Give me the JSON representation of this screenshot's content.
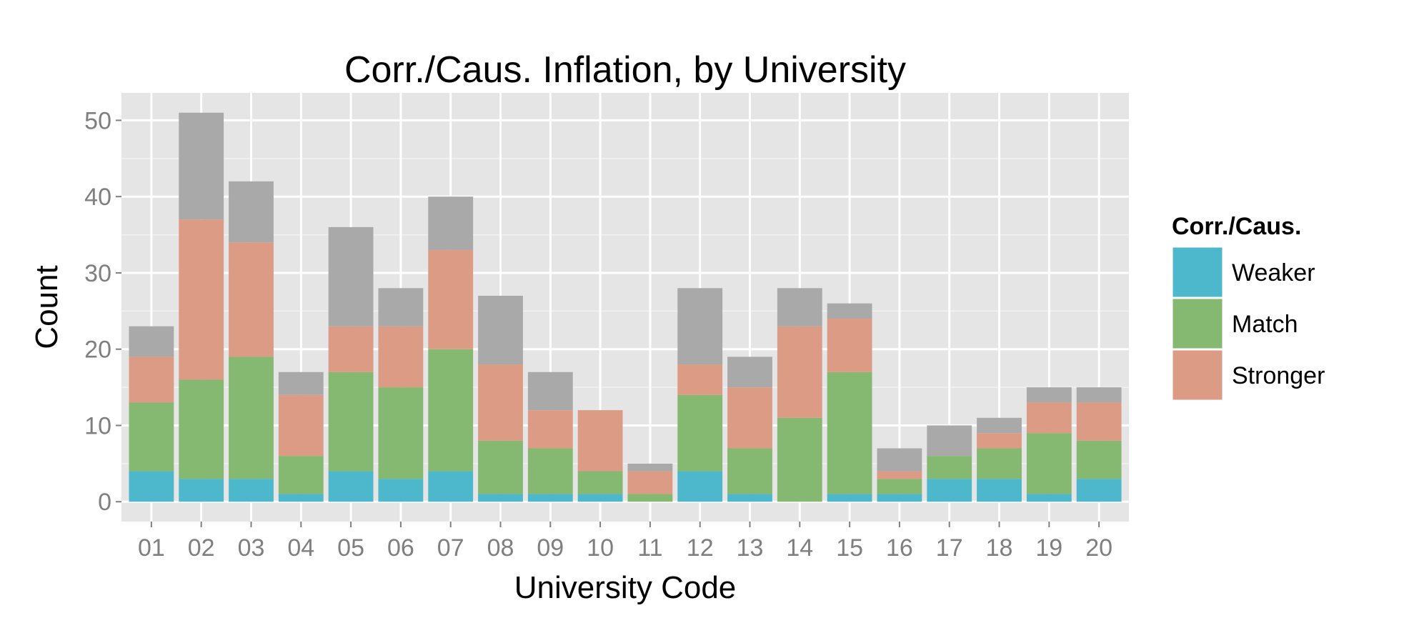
{
  "chart_data": {
    "type": "bar",
    "stacked": true,
    "title": "Corr./Caus. Inflation, by University",
    "xlabel": "University Code",
    "ylabel": "Count",
    "ylim": [
      -2.6,
      53.6
    ],
    "yticks": [
      0,
      10,
      20,
      30,
      40,
      50
    ],
    "grid": true,
    "legend": {
      "title": "Corr./Caus.",
      "position": "right"
    },
    "categories": [
      "01",
      "02",
      "03",
      "04",
      "05",
      "06",
      "07",
      "08",
      "09",
      "10",
      "11",
      "12",
      "13",
      "14",
      "15",
      "16",
      "17",
      "18",
      "19",
      "20"
    ],
    "series": [
      {
        "name": "Weaker",
        "color": "#4db8cc",
        "values": [
          4,
          3,
          3,
          1,
          4,
          3,
          4,
          1,
          1,
          1,
          0,
          4,
          1,
          0,
          1,
          1,
          3,
          3,
          1,
          3
        ]
      },
      {
        "name": "Match",
        "color": "#85b870",
        "values": [
          9,
          13,
          16,
          5,
          13,
          12,
          16,
          7,
          6,
          3,
          1,
          10,
          6,
          11,
          16,
          2,
          3,
          4,
          8,
          5
        ]
      },
      {
        "name": "Stronger",
        "color": "#db9b84",
        "values": [
          6,
          21,
          15,
          8,
          6,
          8,
          13,
          10,
          5,
          8,
          3,
          4,
          8,
          12,
          7,
          1,
          0,
          2,
          4,
          5
        ]
      },
      {
        "name": "",
        "color": "#a9a9a9",
        "values": [
          4,
          14,
          8,
          3,
          13,
          5,
          7,
          9,
          5,
          0,
          1,
          10,
          4,
          5,
          2,
          3,
          4,
          2,
          2,
          2
        ]
      }
    ]
  }
}
